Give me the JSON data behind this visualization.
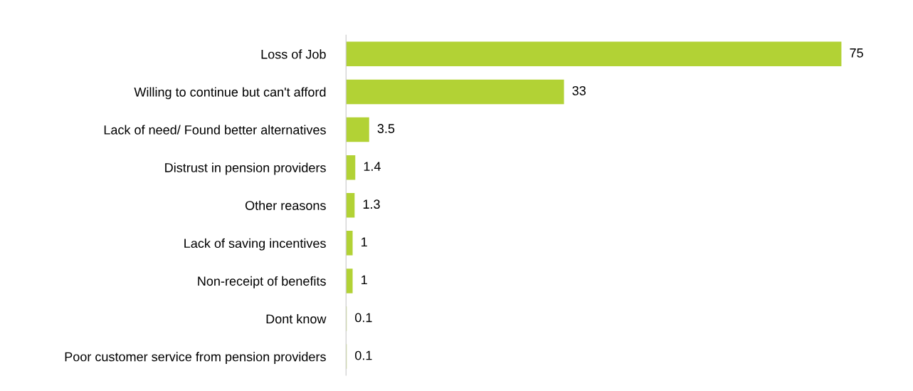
{
  "chart_data": {
    "type": "bar",
    "orientation": "horizontal",
    "categories": [
      "Loss of Job",
      "Willing to continue but can't afford",
      "Lack of need/ Found better alternatives",
      "Distrust in pension providers",
      "Other reasons",
      "Lack of saving incentives",
      "Non-receipt of benefits",
      "Dont know",
      "Poor customer service from pension providers"
    ],
    "values": [
      75,
      33,
      3.5,
      1.4,
      1.3,
      1,
      1,
      0.1,
      0.1
    ],
    "color": "#b2d235",
    "data_labels": true,
    "tick_labels": "y",
    "grid": false
  }
}
